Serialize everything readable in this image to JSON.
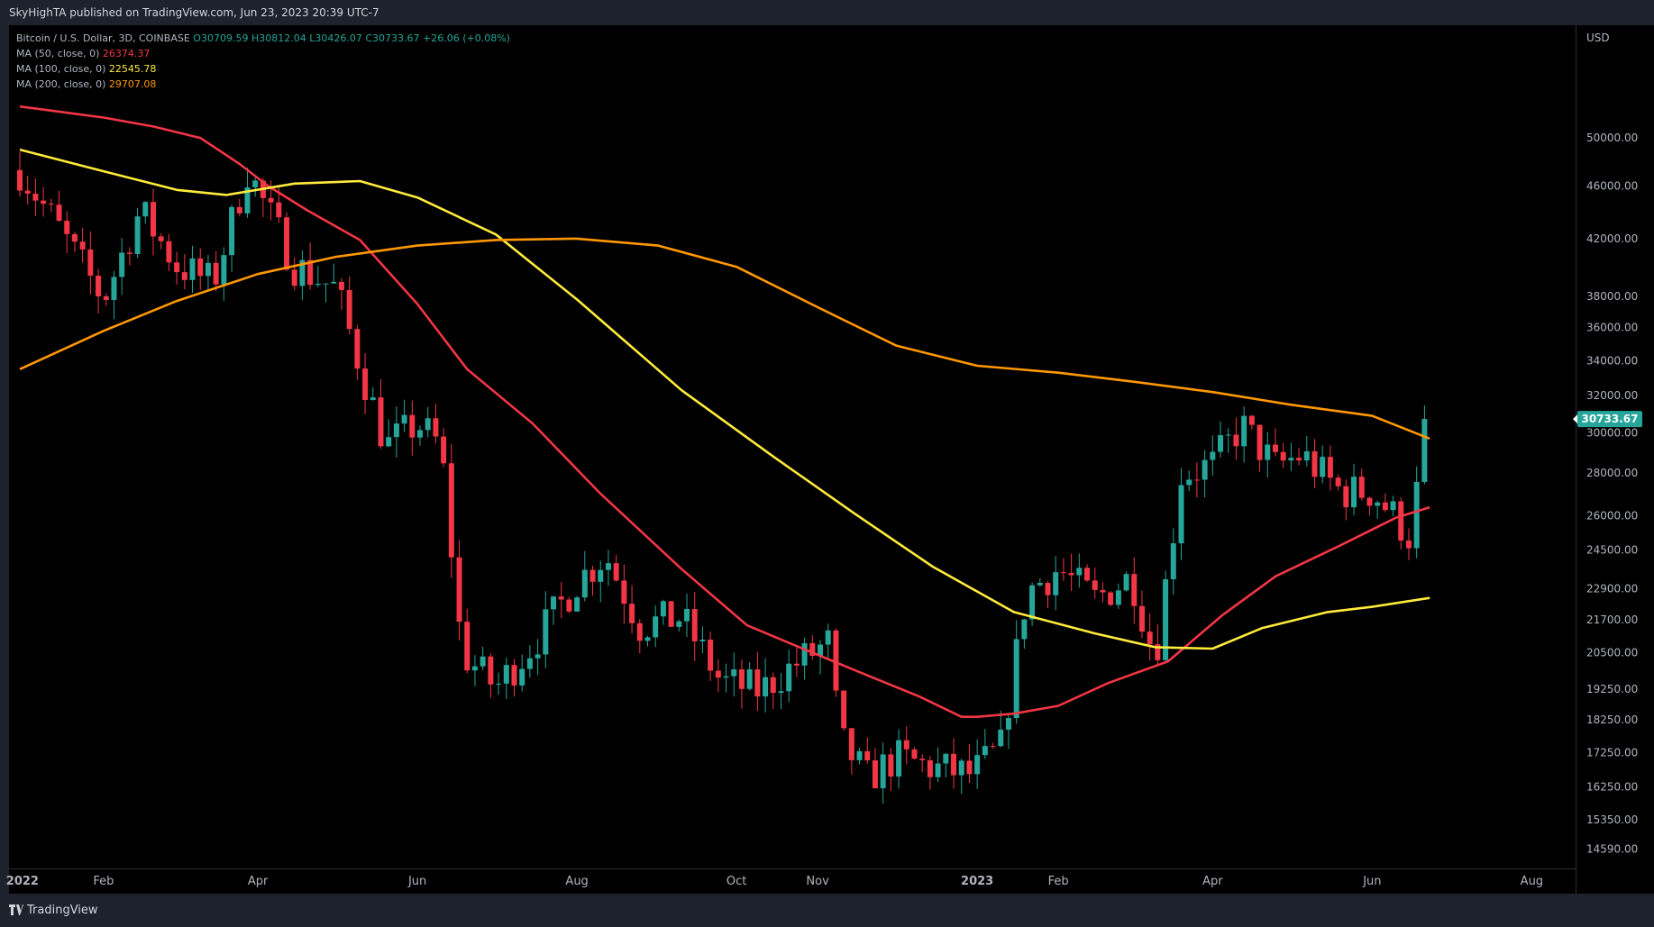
{
  "header": {
    "published": "SkyHighTA published on TradingView.com, Jun 23, 2023 20:39 UTC-7"
  },
  "legend": {
    "symbol": "Bitcoin / U.S. Dollar, 3D, COINBASE",
    "open": "O30709.59",
    "high": "H30812.04",
    "low": "L30426.07",
    "close": "C30733.67",
    "change": "+26.06 (+0.08%)",
    "ma50_label": "MA (50, close, 0)",
    "ma50_value": "26374.37",
    "ma100_label": "MA (100, close, 0)",
    "ma100_value": "22545.78",
    "ma200_label": "MA (200, close, 0)",
    "ma200_value": "29707.08"
  },
  "footer": {
    "brand": "TradingView"
  },
  "chart_data": {
    "type": "candlestick",
    "currency": "USD",
    "y_scale": "log",
    "ylim": [
      14200,
      58000
    ],
    "y_ticks": [
      50000,
      46000,
      42000,
      38000,
      36000,
      34000,
      32000,
      30000,
      28000,
      26000,
      24500,
      22900,
      21700,
      20500,
      19250,
      18250,
      17250,
      16250,
      15350,
      14590
    ],
    "y_tick_labels": [
      "50000.00",
      "46000.00",
      "42000.00",
      "38000.00",
      "36000.00",
      "34000.00",
      "32000.00",
      "30000.00",
      "28000.00",
      "26000.00",
      "24500.00",
      "22900.00",
      "21700.00",
      "20500.00",
      "19250.00",
      "18250.00",
      "17250.00",
      "16250.00",
      "15350.00",
      "14590.00"
    ],
    "x_range": [
      "2021-12-31",
      "2023-08-15"
    ],
    "x_ticks": [
      {
        "label": "2022",
        "date": "2022-01-01"
      },
      {
        "label": "Feb",
        "date": "2022-02-01"
      },
      {
        "label": "Apr",
        "date": "2022-04-01"
      },
      {
        "label": "Jun",
        "date": "2022-06-01"
      },
      {
        "label": "Aug",
        "date": "2022-08-01"
      },
      {
        "label": "Oct",
        "date": "2022-10-01"
      },
      {
        "label": "Nov",
        "date": "2022-11-01"
      },
      {
        "label": "2023",
        "date": "2023-01-01"
      },
      {
        "label": "Feb",
        "date": "2023-02-01"
      },
      {
        "label": "Apr",
        "date": "2023-04-01"
      },
      {
        "label": "Jun",
        "date": "2023-06-01"
      },
      {
        "label": "Aug",
        "date": "2023-08-01"
      }
    ],
    "last_price": 30733.67,
    "last_price_label": "30733.67",
    "up_color": "#26a69a",
    "down_color": "#f23645",
    "close_series": {
      "x": [
        "2021-12-31",
        "2022-01-15",
        "2022-02-01",
        "2022-02-15",
        "2022-03-01",
        "2022-03-15",
        "2022-03-28",
        "2022-04-15",
        "2022-05-01",
        "2022-05-09",
        "2022-05-20",
        "2022-06-01",
        "2022-06-10",
        "2022-06-18",
        "2022-07-01",
        "2022-07-15",
        "2022-08-01",
        "2022-08-12",
        "2022-08-25",
        "2022-09-10",
        "2022-09-25",
        "2022-10-10",
        "2022-10-25",
        "2022-11-06",
        "2022-11-09",
        "2022-11-20",
        "2022-12-01",
        "2022-12-15",
        "2022-12-30",
        "2023-01-10",
        "2023-01-20",
        "2023-02-01",
        "2023-02-15",
        "2023-03-01",
        "2023-03-10",
        "2023-03-20",
        "2023-04-01",
        "2023-04-12",
        "2023-04-25",
        "2023-05-05",
        "2023-05-20",
        "2023-06-01",
        "2023-06-10",
        "2023-06-15",
        "2023-06-23"
      ],
      "y": [
        47300,
        42700,
        37800,
        44100,
        40100,
        38900,
        47300,
        40100,
        38500,
        34200,
        29300,
        30500,
        29300,
        20500,
        19300,
        20800,
        23200,
        24300,
        21500,
        21800,
        19500,
        19200,
        20200,
        20900,
        17700,
        16500,
        17100,
        16800,
        16600,
        17400,
        22800,
        23700,
        22500,
        23400,
        20300,
        27900,
        28400,
        30400,
        28300,
        28900,
        27100,
        27100,
        25900,
        25100,
        30733.67
      ]
    },
    "series": [
      {
        "name": "MA (50, close, 0)",
        "color": "#f23645",
        "x": [
          "2021-12-31",
          "2022-02-01",
          "2022-02-20",
          "2022-03-10",
          "2022-03-25",
          "2022-04-05",
          "2022-04-20",
          "2022-05-10",
          "2022-06-01",
          "2022-06-20",
          "2022-07-15",
          "2022-08-10",
          "2022-09-10",
          "2022-10-05",
          "2022-10-25",
          "2022-11-15",
          "2022-12-10",
          "2022-12-26",
          "2023-01-01",
          "2023-01-15",
          "2023-02-01",
          "2023-02-20",
          "2023-03-15",
          "2023-04-05",
          "2023-04-25",
          "2023-05-20",
          "2023-06-10",
          "2023-06-23"
        ],
        "y": [
          52800,
          51800,
          51000,
          50000,
          47800,
          46000,
          44100,
          41900,
          37500,
          33500,
          30500,
          27000,
          23700,
          21500,
          20700,
          19900,
          19000,
          18350,
          18350,
          18450,
          18700,
          19450,
          20200,
          21900,
          23400,
          24700,
          25900,
          26374.37
        ]
      },
      {
        "name": "MA (100, close, 0)",
        "color": "#ffeb3b",
        "x": [
          "2021-12-31",
          "2022-02-01",
          "2022-03-01",
          "2022-03-20",
          "2022-04-15",
          "2022-05-10",
          "2022-06-01",
          "2022-07-01",
          "2022-08-01",
          "2022-09-10",
          "2022-10-15",
          "2022-11-15",
          "2022-12-15",
          "2023-01-15",
          "2023-02-15",
          "2023-03-10",
          "2023-04-01",
          "2023-04-20",
          "2023-05-15",
          "2023-06-01",
          "2023-06-23"
        ],
        "y": [
          49000,
          47200,
          45700,
          45300,
          46200,
          46400,
          45100,
          42300,
          37800,
          32300,
          28800,
          26100,
          23800,
          22000,
          21200,
          20700,
          20650,
          21400,
          22000,
          22200,
          22545.78
        ]
      },
      {
        "name": "MA (200, close, 0)",
        "color": "#ff9800",
        "x": [
          "2021-12-31",
          "2022-02-01",
          "2022-03-01",
          "2022-04-01",
          "2022-05-01",
          "2022-06-01",
          "2022-07-01",
          "2022-08-01",
          "2022-09-01",
          "2022-10-01",
          "2022-11-01",
          "2022-12-01",
          "2023-01-01",
          "2023-02-01",
          "2023-03-01",
          "2023-04-01",
          "2023-05-01",
          "2023-06-01",
          "2023-06-23"
        ],
        "y": [
          33500,
          35800,
          37700,
          39500,
          40700,
          41500,
          41900,
          42000,
          41500,
          40000,
          37300,
          34900,
          33700,
          33300,
          32800,
          32200,
          31500,
          30900,
          29707.08
        ]
      }
    ]
  }
}
